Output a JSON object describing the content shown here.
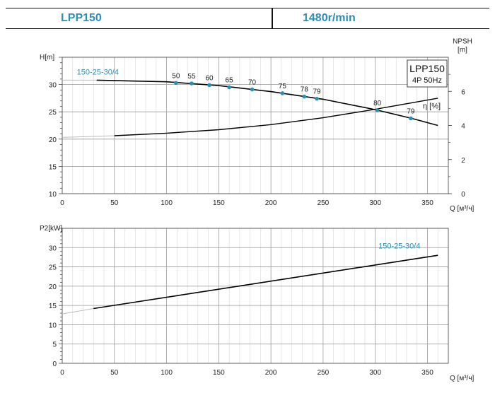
{
  "header": {
    "model": "LPP150",
    "speed": "1480r/min"
  },
  "chart_data": [
    {
      "type": "line",
      "name": "head-curve",
      "ylabel": "H[m]",
      "xlabel": "Q [м³/ч]",
      "xlim": [
        0,
        370
      ],
      "ylim": [
        10,
        35
      ],
      "xticks": [
        0,
        50,
        100,
        150,
        200,
        250,
        300,
        350
      ],
      "yticks": [
        10,
        15,
        20,
        25,
        30
      ],
      "legend": {
        "title": "LPP150",
        "subtitle": "4P  50Hz"
      },
      "series": [
        {
          "name": "150-25-30/4",
          "x": [
            0,
            33,
            100,
            150,
            200,
            250,
            300,
            335,
            360
          ],
          "y": [
            30.8,
            30.8,
            30.5,
            29.8,
            28.7,
            27.3,
            25.4,
            23.8,
            22.5
          ]
        },
        {
          "name": "NPSH",
          "axis": "right",
          "x": [
            0,
            50,
            100,
            150,
            200,
            250,
            300,
            360
          ],
          "y": [
            3.3,
            3.4,
            3.55,
            3.75,
            4.05,
            4.45,
            4.95,
            5.6
          ]
        }
      ],
      "efficiency_points": {
        "axis_label": "η [%]",
        "points": [
          {
            "label": "50",
            "x": 109,
            "y": 30.3
          },
          {
            "label": "55",
            "x": 124,
            "y": 30.2
          },
          {
            "label": "60",
            "x": 141,
            "y": 29.9
          },
          {
            "label": "65",
            "x": 160,
            "y": 29.5
          },
          {
            "label": "70",
            "x": 182,
            "y": 29.1
          },
          {
            "label": "75",
            "x": 211,
            "y": 28.4
          },
          {
            "label": "78",
            "x": 232,
            "y": 27.8
          },
          {
            "label": "79",
            "x": 244,
            "y": 27.4
          },
          {
            "label": "80",
            "x": 302,
            "y": 25.3
          },
          {
            "label": "79",
            "x": 334,
            "y": 23.8
          }
        ]
      },
      "right_axis": {
        "label_top": "NPSH",
        "label_unit": "[m]",
        "ylim": [
          0,
          8
        ],
        "yticks": [
          0,
          2,
          4,
          6
        ]
      }
    },
    {
      "type": "line",
      "name": "power-curve",
      "ylabel": "P2[kW]",
      "xlabel": "Q [м³/ч]",
      "xlim": [
        0,
        370
      ],
      "ylim": [
        0,
        35
      ],
      "xticks": [
        0,
        50,
        100,
        150,
        200,
        250,
        300,
        350
      ],
      "yticks": [
        0,
        5,
        10,
        15,
        20,
        25,
        30
      ],
      "series": [
        {
          "name": "150-25-30/4",
          "x": [
            0,
            30,
            360
          ],
          "y": [
            12.8,
            14.2,
            28.0
          ]
        }
      ]
    }
  ]
}
